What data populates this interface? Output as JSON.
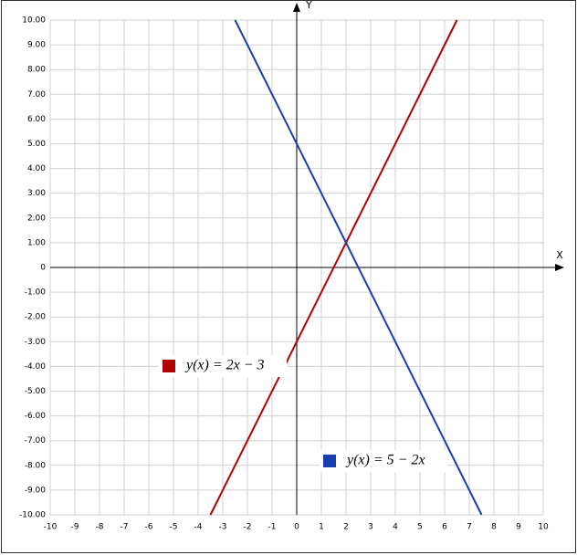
{
  "chart_data": {
    "type": "line",
    "x_label": "X",
    "y_label": "Y",
    "xlim": [
      -10,
      10
    ],
    "ylim": [
      -10,
      10
    ],
    "xticks": [
      -10,
      -9,
      -8,
      -7,
      -6,
      -5,
      -4,
      -3,
      -2,
      -1,
      0,
      1,
      2,
      3,
      4,
      5,
      6,
      7,
      8,
      9,
      10
    ],
    "yticks": [
      {
        "value": 10,
        "label": "10.00"
      },
      {
        "value": 9,
        "label": "9.00"
      },
      {
        "value": 8,
        "label": "8.00"
      },
      {
        "value": 7,
        "label": "7.00"
      },
      {
        "value": 6,
        "label": "6.00"
      },
      {
        "value": 5,
        "label": "5.00"
      },
      {
        "value": 4,
        "label": "4.00"
      },
      {
        "value": 3,
        "label": "3.00"
      },
      {
        "value": 2,
        "label": "2.00"
      },
      {
        "value": 1,
        "label": "1.00"
      },
      0,
      {
        "value": -1,
        "label": "-1.00"
      },
      {
        "value": -2,
        "label": "-2.00"
      },
      {
        "value": -3,
        "label": "-3.00"
      },
      {
        "value": -4,
        "label": "-4.00"
      },
      {
        "value": -5,
        "label": "-5.00"
      },
      {
        "value": -6,
        "label": "-6.00"
      },
      {
        "value": -7,
        "label": "-7.00"
      },
      {
        "value": -8,
        "label": "-8.00"
      },
      {
        "value": -9,
        "label": "-9.00"
      },
      {
        "value": -10,
        "label": "-10.00"
      }
    ],
    "grid": true,
    "series": [
      {
        "name": "y(x) = 2x − 3",
        "color": "#b00000",
        "x": [
          -3.5,
          6.5
        ],
        "values": [
          -10,
          10
        ]
      },
      {
        "name": "y(x) = 5 − 2x",
        "color": "#1a3fb0",
        "x": [
          -2.5,
          7.5
        ],
        "values": [
          10,
          -10
        ]
      }
    ]
  }
}
